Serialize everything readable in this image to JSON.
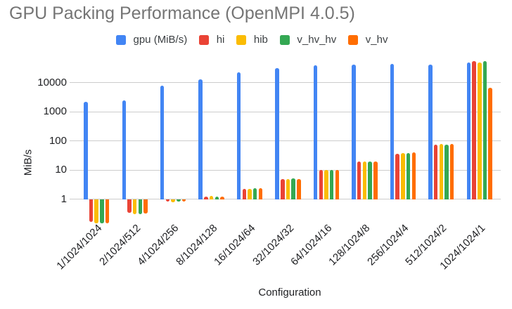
{
  "chart_data": {
    "type": "bar",
    "title": "GPU Packing Performance (OpenMPI 4.0.5)",
    "xlabel": "Configuration",
    "ylabel": "MiB/s",
    "yscale": "log",
    "ylim": [
      0.1,
      65000
    ],
    "yticks": [
      1,
      10,
      100,
      1000,
      10000
    ],
    "grid": true,
    "legend_position": "top",
    "categories": [
      "1/1024/1024",
      "2/1024/512",
      "4/1024/256",
      "8/1024/128",
      "16/1024/64",
      "32/1024/32",
      "64/1024/16",
      "128/1024/8",
      "256/1024/4",
      "512/1024/2",
      "1024/1024/1"
    ],
    "series": [
      {
        "name": "gpu (MiB/s)",
        "color": "#4285F4",
        "values": [
          2200,
          2500,
          8000,
          12700,
          23000,
          31000,
          40000,
          42500,
          45000,
          42000,
          49000
        ]
      },
      {
        "name": "hi",
        "color": "#EA4335",
        "values": [
          0.17,
          0.34,
          0.85,
          1.25,
          2.3,
          5.0,
          10.0,
          19.5,
          37,
          74,
          54000
        ]
      },
      {
        "name": "hib",
        "color": "#FBBC04",
        "values": [
          0.155,
          0.315,
          0.82,
          1.3,
          2.3,
          5.0,
          10.0,
          20,
          39,
          78,
          49500
        ]
      },
      {
        "name": "v_hv_hv",
        "color": "#34A853",
        "values": [
          0.15,
          0.31,
          0.84,
          1.2,
          2.4,
          5.2,
          10.0,
          19.5,
          38,
          76,
          56000
        ]
      },
      {
        "name": "v_hv",
        "color": "#FF6D01",
        "values": [
          0.155,
          0.325,
          0.83,
          1.25,
          2.4,
          5.0,
          10.2,
          20,
          40,
          80,
          6500
        ]
      }
    ]
  }
}
